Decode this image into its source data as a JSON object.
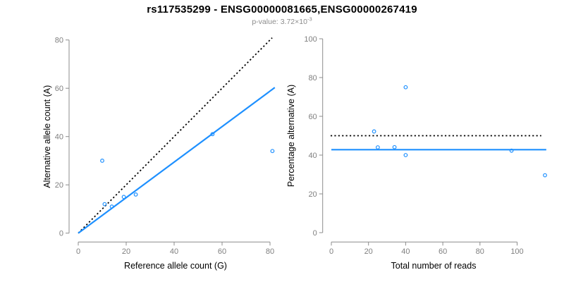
{
  "header": {
    "title": "rs117535299 - ENSG00000081665,ENSG00000267419",
    "pvalue": {
      "label": "p-value:",
      "mantissa": "3.72",
      "times_sign": "×",
      "base": "10",
      "exponent": "-3"
    }
  },
  "colors": {
    "accent_blue": "#1E90FF",
    "identity_black": "#000000",
    "axis_gray": "#8c8c8c",
    "tick_text_gray": "#7f7f7f",
    "axis_title_text": "#000000",
    "background": "#ffffff"
  },
  "chart_data": [
    {
      "id": "allele-counts-scatter",
      "type": "scatter",
      "xlabel": "Reference allele count (G)",
      "ylabel": "Alternative allele count (A)",
      "xlim": [
        0,
        82
      ],
      "ylim": [
        0,
        81
      ],
      "xticks": [
        0,
        20,
        40,
        60,
        80
      ],
      "yticks": [
        0,
        20,
        40,
        60,
        80
      ],
      "grid": false,
      "points": [
        {
          "x": 10,
          "y": 30
        },
        {
          "x": 11,
          "y": 12
        },
        {
          "x": 14,
          "y": 11
        },
        {
          "x": 19,
          "y": 15
        },
        {
          "x": 24,
          "y": 16
        },
        {
          "x": 56,
          "y": 41
        },
        {
          "x": 81,
          "y": 34
        }
      ],
      "lines": [
        {
          "name": "identity-line",
          "style": "dotted",
          "color": "#000000",
          "points": [
            [
              0,
              0
            ],
            [
              80.9,
              80.9
            ]
          ]
        },
        {
          "name": "fit-line",
          "style": "solid",
          "color": "#1E90FF",
          "points": [
            [
              0,
              0
            ],
            [
              82,
              60.3
            ]
          ]
        }
      ]
    },
    {
      "id": "percentage-alternative-scatter",
      "type": "scatter",
      "xlabel": "Total number of reads",
      "ylabel": "Percentage alternative (A)",
      "xlim": [
        -1,
        117
      ],
      "ylim": [
        0,
        100
      ],
      "xticks": [
        0,
        20,
        40,
        60,
        80,
        100
      ],
      "yticks": [
        0,
        20,
        40,
        60,
        80,
        100
      ],
      "grid": false,
      "points": [
        {
          "x": 23,
          "y": 52.2
        },
        {
          "x": 25,
          "y": 44
        },
        {
          "x": 34,
          "y": 44.1
        },
        {
          "x": 40,
          "y": 75
        },
        {
          "x": 40,
          "y": 40
        },
        {
          "x": 97,
          "y": 42.3
        },
        {
          "x": 115,
          "y": 29.6
        }
      ],
      "lines": [
        {
          "name": "fifty-percent-line",
          "style": "dotted",
          "color": "#000000",
          "points": [
            [
              -0.4,
              50
            ],
            [
              113,
              50
            ]
          ]
        },
        {
          "name": "mean-percentage-line",
          "style": "solid",
          "color": "#1E90FF",
          "points": [
            [
              0,
              42.8
            ],
            [
              115.7,
              42.8
            ]
          ]
        }
      ]
    }
  ]
}
